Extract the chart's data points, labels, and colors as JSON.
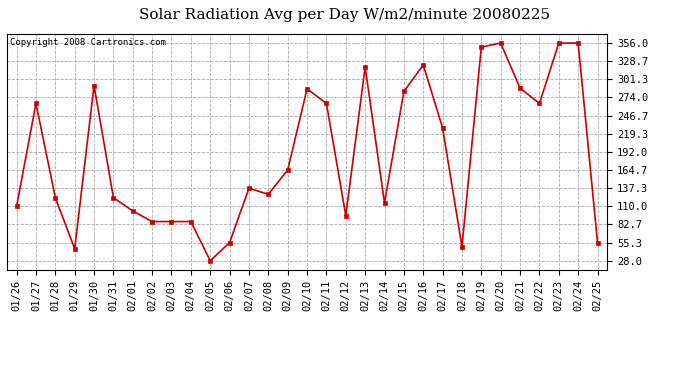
{
  "title": "Solar Radiation Avg per Day W/m2/minute 20080225",
  "copyright_text": "Copyright 2008 Cartronics.com",
  "dates": [
    "01/26",
    "01/27",
    "01/28",
    "01/29",
    "01/30",
    "01/31",
    "02/01",
    "02/02",
    "02/03",
    "02/04",
    "02/05",
    "02/06",
    "02/07",
    "02/08",
    "02/09",
    "02/10",
    "02/11",
    "02/12",
    "02/13",
    "02/14",
    "02/15",
    "02/16",
    "02/17",
    "02/18",
    "02/19",
    "02/20",
    "02/21",
    "02/22",
    "02/23",
    "02/24",
    "02/25"
  ],
  "values": [
    110.0,
    265.0,
    123.0,
    46.0,
    292.0,
    123.0,
    103.0,
    87.0,
    87.0,
    87.0,
    28.0,
    55.3,
    137.3,
    128.0,
    164.7,
    287.0,
    265.0,
    96.0,
    320.0,
    115.0,
    283.0,
    323.0,
    228.0,
    49.0,
    350.0,
    356.0,
    288.0,
    265.0,
    356.0,
    356.0,
    55.3
  ],
  "line_color": "#cc0000",
  "marker_color": "#cc0000",
  "bg_color": "#ffffff",
  "plot_bg_color": "#ffffff",
  "grid_color": "#aaaaaa",
  "title_fontsize": 11,
  "tick_fontsize": 7.5,
  "yticks": [
    28.0,
    55.3,
    82.7,
    110.0,
    137.3,
    164.7,
    192.0,
    219.3,
    246.7,
    274.0,
    301.3,
    328.7,
    356.0
  ],
  "ylim": [
    14.0,
    370.0
  ]
}
